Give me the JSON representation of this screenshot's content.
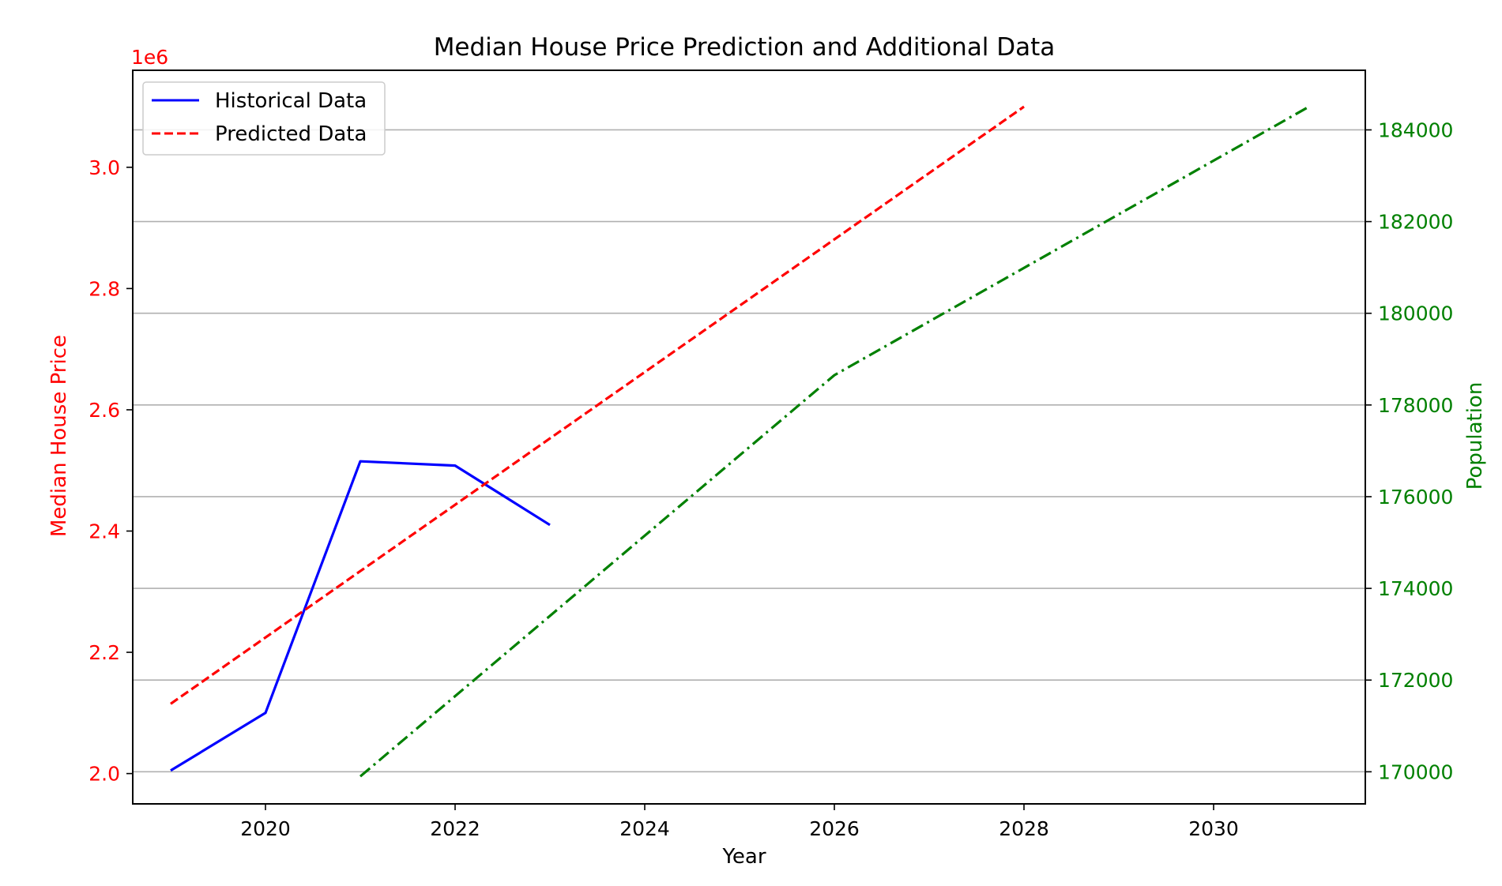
{
  "chart_data": {
    "type": "line",
    "title": "Median House Price Prediction and Additional Data",
    "xlabel": "Year",
    "ylabel_left": "Median House Price",
    "ylabel_right": "Population",
    "left_offset_text": "1e6",
    "xlim": [
      2018.6,
      2031.6
    ],
    "ylim_left": [
      1.95,
      3.16
    ],
    "ylim_right": [
      169300,
      185300
    ],
    "x_ticks": [
      2020,
      2022,
      2024,
      2026,
      2028,
      2030
    ],
    "x_tick_labels": [
      "2020",
      "2022",
      "2024",
      "2026",
      "2028",
      "2030"
    ],
    "y_left_ticks": [
      2.0,
      2.2,
      2.4,
      2.6,
      2.8,
      3.0
    ],
    "y_left_tick_labels": [
      "2.0",
      "2.2",
      "2.4",
      "2.6",
      "2.8",
      "3.0"
    ],
    "y_right_ticks": [
      170000,
      172000,
      174000,
      176000,
      178000,
      180000,
      182000,
      184000
    ],
    "y_right_tick_labels": [
      "170000",
      "172000",
      "174000",
      "176000",
      "178000",
      "180000",
      "182000",
      "184000"
    ],
    "grid": "horizontal lines at right-axis ticks",
    "legend_position": "upper-left",
    "colors": {
      "left_axis": "#ff0000",
      "right_axis": "#008000",
      "grid": "#b0b0b0"
    },
    "series": [
      {
        "name": "Historical Data",
        "axis": "left",
        "style": "solid",
        "color": "#0000ff",
        "x": [
          2019,
          2020,
          2021,
          2022,
          2023
        ],
        "y": [
          2.005,
          2.1,
          2.515,
          2.508,
          2.41
        ]
      },
      {
        "name": "Predicted Data",
        "axis": "left",
        "style": "dashed",
        "color": "#ff0000",
        "x": [
          2019,
          2028
        ],
        "y": [
          2.115,
          3.1
        ]
      },
      {
        "axis": "right",
        "style": "dashdot",
        "color": "#008000",
        "x": [
          2021,
          2026,
          2031
        ],
        "y": [
          169900,
          178650,
          184500
        ]
      }
    ]
  }
}
